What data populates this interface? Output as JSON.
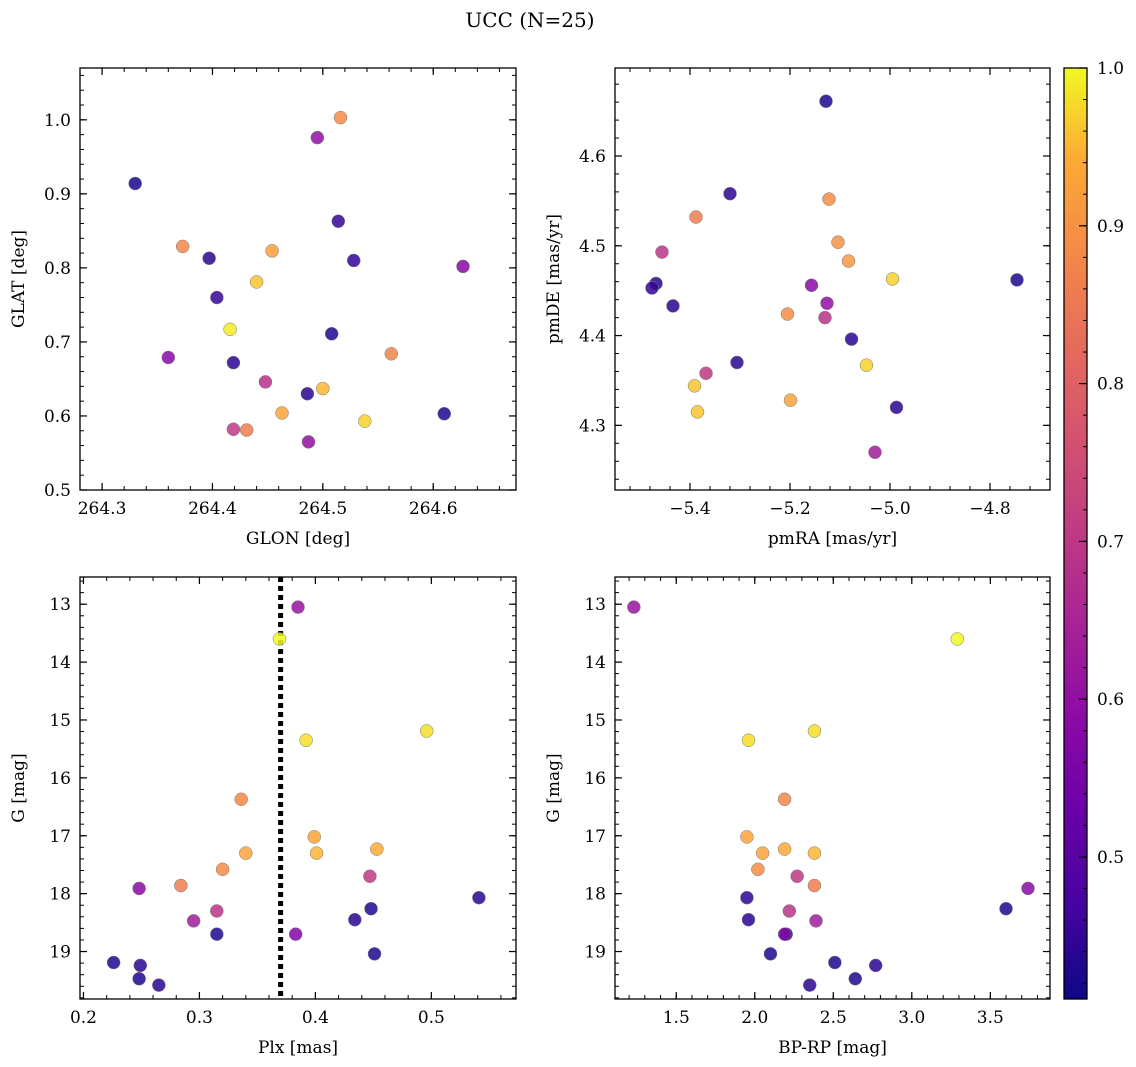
{
  "figure": {
    "title": "UCC (N=25)"
  },
  "colorbar": {
    "range": [
      0.41,
      1.0
    ],
    "ticks": [
      0.5,
      0.6,
      0.7,
      0.8,
      0.9,
      1.0
    ],
    "tick_labels": [
      "0.5",
      "0.6",
      "0.7",
      "0.8",
      "0.9",
      "1.0"
    ],
    "colormap": "plasma"
  },
  "chart_data": [
    {
      "type": "scatter",
      "xlabel": "GLON [deg]",
      "ylabel": "GLAT [deg]",
      "xlim": [
        264.28,
        264.675
      ],
      "ylim": [
        0.5,
        1.07
      ],
      "xticks": [
        264.3,
        264.4,
        264.5,
        264.6
      ],
      "xtick_labels": [
        "264.3",
        "264.4",
        "264.5",
        "264.6"
      ],
      "yticks": [
        0.5,
        0.6,
        0.7,
        0.8,
        0.9,
        1.0
      ],
      "ytick_labels": [
        "0.5",
        "0.6",
        "0.7",
        "0.8",
        "0.9",
        "1.0"
      ],
      "y_inverted": false,
      "points": [
        {
          "x": 264.33,
          "y": 0.914,
          "c": 0.42
        },
        {
          "x": 264.36,
          "y": 0.679,
          "c": 0.58
        },
        {
          "x": 264.373,
          "y": 0.829,
          "c": 0.88
        },
        {
          "x": 264.397,
          "y": 0.813,
          "c": 0.44
        },
        {
          "x": 264.404,
          "y": 0.76,
          "c": 0.45
        },
        {
          "x": 264.416,
          "y": 0.717,
          "c": 0.99
        },
        {
          "x": 264.419,
          "y": 0.672,
          "c": 0.44
        },
        {
          "x": 264.419,
          "y": 0.582,
          "c": 0.7
        },
        {
          "x": 264.431,
          "y": 0.581,
          "c": 0.86
        },
        {
          "x": 264.44,
          "y": 0.781,
          "c": 0.96
        },
        {
          "x": 264.448,
          "y": 0.646,
          "c": 0.68
        },
        {
          "x": 264.454,
          "y": 0.823,
          "c": 0.92
        },
        {
          "x": 264.463,
          "y": 0.604,
          "c": 0.93
        },
        {
          "x": 264.486,
          "y": 0.63,
          "c": 0.44
        },
        {
          "x": 264.487,
          "y": 0.565,
          "c": 0.6
        },
        {
          "x": 264.495,
          "y": 0.976,
          "c": 0.6
        },
        {
          "x": 264.5,
          "y": 0.637,
          "c": 0.95
        },
        {
          "x": 264.508,
          "y": 0.711,
          "c": 0.43
        },
        {
          "x": 264.514,
          "y": 0.863,
          "c": 0.45
        },
        {
          "x": 264.516,
          "y": 1.003,
          "c": 0.89
        },
        {
          "x": 264.528,
          "y": 0.81,
          "c": 0.45
        },
        {
          "x": 264.538,
          "y": 0.593,
          "c": 0.97
        },
        {
          "x": 264.562,
          "y": 0.684,
          "c": 0.87
        },
        {
          "x": 264.61,
          "y": 0.603,
          "c": 0.43
        },
        {
          "x": 264.627,
          "y": 0.802,
          "c": 0.58
        }
      ]
    },
    {
      "type": "scatter",
      "xlabel": "pmRA [mas/yr]",
      "ylabel": "pmDE [mas/yr]",
      "xlim": [
        -5.55,
        -4.68
      ],
      "ylim": [
        4.228,
        4.698
      ],
      "xticks": [
        -5.4,
        -5.2,
        -5.0,
        -4.8
      ],
      "xtick_labels": [
        "−5.4",
        "−5.2",
        "−5.0",
        "−4.8"
      ],
      "yticks": [
        4.3,
        4.4,
        4.5,
        4.6
      ],
      "ytick_labels": [
        "4.3",
        "4.4",
        "4.5",
        "4.6"
      ],
      "y_inverted": false,
      "points": [
        {
          "x": -5.128,
          "y": 4.661,
          "c": 0.43
        },
        {
          "x": -5.32,
          "y": 4.558,
          "c": 0.44
        },
        {
          "x": -5.388,
          "y": 4.532,
          "c": 0.86
        },
        {
          "x": -5.122,
          "y": 4.552,
          "c": 0.89
        },
        {
          "x": -5.104,
          "y": 4.504,
          "c": 0.9
        },
        {
          "x": -5.456,
          "y": 4.493,
          "c": 0.69
        },
        {
          "x": -5.083,
          "y": 4.483,
          "c": 0.91
        },
        {
          "x": -4.995,
          "y": 4.463,
          "c": 0.97
        },
        {
          "x": -4.746,
          "y": 4.462,
          "c": 0.43
        },
        {
          "x": -5.468,
          "y": 4.458,
          "c": 0.44
        },
        {
          "x": -5.476,
          "y": 4.453,
          "c": 0.45
        },
        {
          "x": -5.157,
          "y": 4.456,
          "c": 0.58
        },
        {
          "x": -5.434,
          "y": 4.433,
          "c": 0.44
        },
        {
          "x": -5.126,
          "y": 4.436,
          "c": 0.6
        },
        {
          "x": -5.205,
          "y": 4.424,
          "c": 0.89
        },
        {
          "x": -5.13,
          "y": 4.42,
          "c": 0.68
        },
        {
          "x": -5.077,
          "y": 4.396,
          "c": 0.44
        },
        {
          "x": -5.306,
          "y": 4.37,
          "c": 0.44
        },
        {
          "x": -5.047,
          "y": 4.367,
          "c": 0.97
        },
        {
          "x": -5.368,
          "y": 4.358,
          "c": 0.7
        },
        {
          "x": -5.391,
          "y": 4.344,
          "c": 0.96
        },
        {
          "x": -5.199,
          "y": 4.328,
          "c": 0.93
        },
        {
          "x": -4.987,
          "y": 4.32,
          "c": 0.44
        },
        {
          "x": -5.385,
          "y": 4.315,
          "c": 0.96
        },
        {
          "x": -5.03,
          "y": 4.27,
          "c": 0.63
        }
      ]
    },
    {
      "type": "scatter",
      "xlabel": "Plx [mas]",
      "ylabel": "G [mag]",
      "xlim": [
        0.197,
        0.573
      ],
      "ylim": [
        12.53,
        19.82
      ],
      "xticks": [
        0.2,
        0.3,
        0.4,
        0.5
      ],
      "xtick_labels": [
        "0.2",
        "0.3",
        "0.4",
        "0.5"
      ],
      "yticks": [
        13,
        14,
        15,
        16,
        17,
        18,
        19
      ],
      "ytick_labels": [
        "13",
        "14",
        "15",
        "16",
        "17",
        "18",
        "19"
      ],
      "y_inverted": true,
      "vline": {
        "x": 0.37,
        "style": "dotted",
        "color": "#000000"
      },
      "points": [
        {
          "x": 0.385,
          "y": 13.05,
          "c": 0.61
        },
        {
          "x": 0.369,
          "y": 13.6,
          "c": 1.0
        },
        {
          "x": 0.496,
          "y": 15.19,
          "c": 0.98
        },
        {
          "x": 0.392,
          "y": 15.35,
          "c": 0.98
        },
        {
          "x": 0.336,
          "y": 16.37,
          "c": 0.88
        },
        {
          "x": 0.399,
          "y": 17.02,
          "c": 0.93
        },
        {
          "x": 0.453,
          "y": 17.23,
          "c": 0.94
        },
        {
          "x": 0.34,
          "y": 17.3,
          "c": 0.93
        },
        {
          "x": 0.401,
          "y": 17.3,
          "c": 0.95
        },
        {
          "x": 0.32,
          "y": 17.58,
          "c": 0.89
        },
        {
          "x": 0.447,
          "y": 17.7,
          "c": 0.7
        },
        {
          "x": 0.284,
          "y": 17.86,
          "c": 0.86
        },
        {
          "x": 0.248,
          "y": 17.91,
          "c": 0.58
        },
        {
          "x": 0.541,
          "y": 18.07,
          "c": 0.44
        },
        {
          "x": 0.448,
          "y": 18.26,
          "c": 0.43
        },
        {
          "x": 0.315,
          "y": 18.3,
          "c": 0.69
        },
        {
          "x": 0.434,
          "y": 18.45,
          "c": 0.44
        },
        {
          "x": 0.295,
          "y": 18.47,
          "c": 0.63
        },
        {
          "x": 0.315,
          "y": 18.7,
          "c": 0.43
        },
        {
          "x": 0.383,
          "y": 18.7,
          "c": 0.57
        },
        {
          "x": 0.451,
          "y": 19.04,
          "c": 0.43
        },
        {
          "x": 0.226,
          "y": 19.19,
          "c": 0.43
        },
        {
          "x": 0.249,
          "y": 19.24,
          "c": 0.44
        },
        {
          "x": 0.248,
          "y": 19.47,
          "c": 0.43
        },
        {
          "x": 0.265,
          "y": 19.58,
          "c": 0.44
        }
      ]
    },
    {
      "type": "scatter",
      "xlabel": "BP-RP [mag]",
      "ylabel": "G [mag]",
      "xlim": [
        1.11,
        3.88
      ],
      "ylim": [
        12.53,
        19.82
      ],
      "xticks": [
        1.5,
        2.0,
        2.5,
        3.0,
        3.5
      ],
      "xtick_labels": [
        "1.5",
        "2.0",
        "2.5",
        "3.0",
        "3.5"
      ],
      "yticks": [
        13,
        14,
        15,
        16,
        17,
        18,
        19
      ],
      "ytick_labels": [
        "13",
        "14",
        "15",
        "16",
        "17",
        "18",
        "19"
      ],
      "y_inverted": true,
      "points": [
        {
          "x": 1.23,
          "y": 13.05,
          "c": 0.61
        },
        {
          "x": 3.29,
          "y": 13.6,
          "c": 1.0
        },
        {
          "x": 2.38,
          "y": 15.19,
          "c": 0.98
        },
        {
          "x": 1.96,
          "y": 15.35,
          "c": 0.98
        },
        {
          "x": 2.19,
          "y": 16.37,
          "c": 0.88
        },
        {
          "x": 1.95,
          "y": 17.02,
          "c": 0.93
        },
        {
          "x": 2.19,
          "y": 17.23,
          "c": 0.94
        },
        {
          "x": 2.05,
          "y": 17.3,
          "c": 0.93
        },
        {
          "x": 2.38,
          "y": 17.3,
          "c": 0.95
        },
        {
          "x": 2.02,
          "y": 17.58,
          "c": 0.89
        },
        {
          "x": 2.27,
          "y": 17.7,
          "c": 0.7
        },
        {
          "x": 2.38,
          "y": 17.86,
          "c": 0.86
        },
        {
          "x": 3.74,
          "y": 17.91,
          "c": 0.58
        },
        {
          "x": 1.95,
          "y": 18.07,
          "c": 0.44
        },
        {
          "x": 3.6,
          "y": 18.26,
          "c": 0.43
        },
        {
          "x": 2.22,
          "y": 18.3,
          "c": 0.69
        },
        {
          "x": 1.96,
          "y": 18.45,
          "c": 0.44
        },
        {
          "x": 2.39,
          "y": 18.47,
          "c": 0.63
        },
        {
          "x": 2.2,
          "y": 18.7,
          "c": 0.43
        },
        {
          "x": 2.19,
          "y": 18.7,
          "c": 0.57
        },
        {
          "x": 2.1,
          "y": 19.04,
          "c": 0.43
        },
        {
          "x": 2.51,
          "y": 19.19,
          "c": 0.43
        },
        {
          "x": 2.77,
          "y": 19.24,
          "c": 0.44
        },
        {
          "x": 2.64,
          "y": 19.47,
          "c": 0.43
        },
        {
          "x": 2.35,
          "y": 19.58,
          "c": 0.44
        }
      ]
    }
  ]
}
